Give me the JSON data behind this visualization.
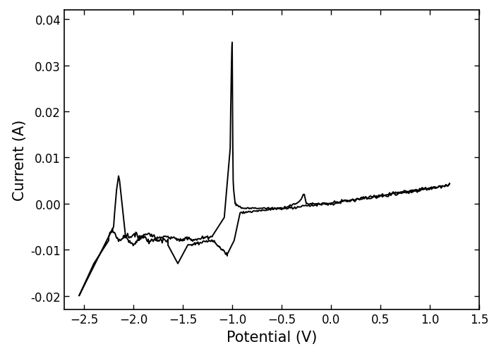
{
  "xlabel": "Potential (V)",
  "ylabel": "Current (A)",
  "xlim": [
    -2.7,
    1.5
  ],
  "ylim": [
    -0.023,
    0.042
  ],
  "xticks": [
    -2.5,
    -2.0,
    -1.5,
    -1.0,
    -0.5,
    0.0,
    0.5,
    1.0,
    1.5
  ],
  "yticks": [
    -0.02,
    -0.01,
    0.0,
    0.01,
    0.02,
    0.03,
    0.04
  ],
  "line_color": "#000000",
  "line_width": 1.4,
  "background_color": "#ffffff",
  "xlabel_fontsize": 15,
  "ylabel_fontsize": 15,
  "tick_fontsize": 12
}
